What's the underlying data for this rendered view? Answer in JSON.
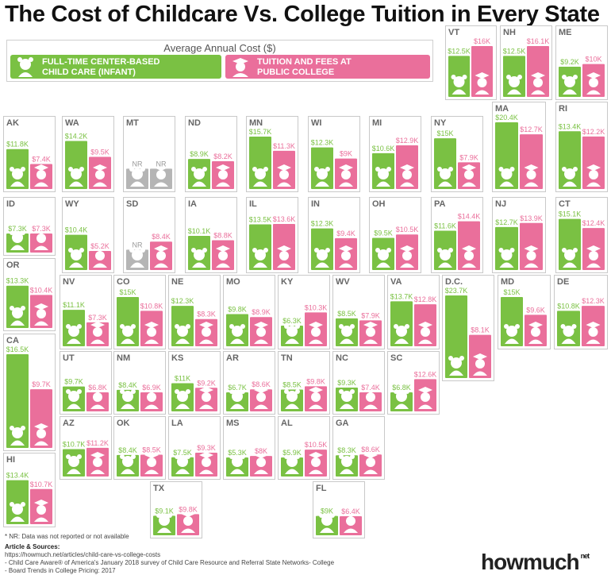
{
  "title": "The Cost of Childcare Vs. College Tuition in Every State",
  "legend": {
    "title": "Average Annual Cost ($)",
    "childcare": "FULL-TIME CENTER-BASED CHILD CARE (INFANT)",
    "childcare_line1": "FULL-TIME CENTER-BASED",
    "childcare_line2": "CHILD CARE (INFANT)",
    "college": "TUITION AND FEES AT PUBLIC COLLEGE",
    "college_line1": "TUITION AND FEES AT",
    "college_line2": "PUBLIC COLLEGE"
  },
  "colors": {
    "childcare": "#7ac143",
    "college": "#ea6f9b",
    "not_reported": "#b5b5b5",
    "border": "#c9c9c9"
  },
  "icons": {
    "childcare": "baby-icon",
    "college": "graduate-icon"
  },
  "chart_data": {
    "type": "bar",
    "title": "The Cost of Childcare Vs. College Tuition in Every State",
    "unit": "$ thousands",
    "series_names": [
      "FULL-TIME CENTER-BASED CHILD CARE (INFANT)",
      "TUITION AND FEES AT PUBLIC COLLEGE"
    ],
    "states": [
      {
        "state": "VT",
        "childcare": 12.5,
        "college": 16,
        "childcare_label": "$12.5K",
        "college_label": "$16K"
      },
      {
        "state": "NH",
        "childcare": 12.5,
        "college": 16.1,
        "childcare_label": "$12.5K",
        "college_label": "$16.1K"
      },
      {
        "state": "ME",
        "childcare": 9.2,
        "college": 10,
        "childcare_label": "$9.2K",
        "college_label": "$10K"
      },
      {
        "state": "AK",
        "childcare": 11.8,
        "college": 7.4,
        "childcare_label": "$11.8K",
        "college_label": "$7.4K"
      },
      {
        "state": "WA",
        "childcare": 14.2,
        "college": 9.5,
        "childcare_label": "$14.2K",
        "college_label": "$9.5K"
      },
      {
        "state": "MT",
        "childcare": null,
        "college": null,
        "childcare_label": "NR",
        "college_label": "NR"
      },
      {
        "state": "ND",
        "childcare": 8.9,
        "college": 8.2,
        "childcare_label": "$8.9K",
        "college_label": "$8.2K"
      },
      {
        "state": "MN",
        "childcare": 15.7,
        "college": 11.3,
        "childcare_label": "$15.7K",
        "college_label": "$11.3K"
      },
      {
        "state": "WI",
        "childcare": 12.3,
        "college": 9,
        "childcare_label": "$12.3K",
        "college_label": "$9K"
      },
      {
        "state": "MI",
        "childcare": 10.6,
        "college": 12.9,
        "childcare_label": "$10.6K",
        "college_label": "$12.9K"
      },
      {
        "state": "NY",
        "childcare": 15,
        "college": 7.9,
        "childcare_label": "$15K",
        "college_label": "$7.9K"
      },
      {
        "state": "MA",
        "childcare": 20.4,
        "college": 12.7,
        "childcare_label": "$20.4K",
        "college_label": "$12.7K"
      },
      {
        "state": "RI",
        "childcare": 13.4,
        "college": 12.2,
        "childcare_label": "$13.4K",
        "college_label": "$12.2K"
      },
      {
        "state": "ID",
        "childcare": 7.3,
        "college": 7.3,
        "childcare_label": "$7.3K",
        "college_label": "$7.3K"
      },
      {
        "state": "WY",
        "childcare": 10.4,
        "college": 5.2,
        "childcare_label": "$10.4K",
        "college_label": "$5.2K"
      },
      {
        "state": "SD",
        "childcare": null,
        "college": 8.4,
        "childcare_label": "NR",
        "college_label": "$8.4K"
      },
      {
        "state": "IA",
        "childcare": 10.1,
        "college": 8.8,
        "childcare_label": "$10.1K",
        "college_label": "$8.8K"
      },
      {
        "state": "IL",
        "childcare": 13.5,
        "college": 13.6,
        "childcare_label": "$13.5K",
        "college_label": "$13.6K"
      },
      {
        "state": "IN",
        "childcare": 12.3,
        "college": 9.4,
        "childcare_label": "$12.3K",
        "college_label": "$9.4K"
      },
      {
        "state": "OH",
        "childcare": 9.5,
        "college": 10.5,
        "childcare_label": "$9.5K",
        "college_label": "$10.5K"
      },
      {
        "state": "PA",
        "childcare": 11.6,
        "college": 14.4,
        "childcare_label": "$11.6K",
        "college_label": "$14.4K"
      },
      {
        "state": "NJ",
        "childcare": 12.7,
        "college": 13.9,
        "childcare_label": "$12.7K",
        "college_label": "$13.9K"
      },
      {
        "state": "CT",
        "childcare": 15.1,
        "college": 12.4,
        "childcare_label": "$15.1K",
        "college_label": "$12.4K"
      },
      {
        "state": "OR",
        "childcare": 13.3,
        "college": 10.4,
        "childcare_label": "$13.3K",
        "college_label": "$10.4K"
      },
      {
        "state": "NV",
        "childcare": 11.1,
        "college": 7.3,
        "childcare_label": "$11.1K",
        "college_label": "$7.3K"
      },
      {
        "state": "CO",
        "childcare": 15,
        "college": 10.8,
        "childcare_label": "$15K",
        "college_label": "$10.8K"
      },
      {
        "state": "NE",
        "childcare": 12.3,
        "college": 8.3,
        "childcare_label": "$12.3K",
        "college_label": "$8.3K"
      },
      {
        "state": "MO",
        "childcare": 9.8,
        "college": 8.9,
        "childcare_label": "$9.8K",
        "college_label": "$8.9K"
      },
      {
        "state": "KY",
        "childcare": 6.3,
        "college": 10.3,
        "childcare_label": "$6.3K",
        "college_label": "$10.3K"
      },
      {
        "state": "WV",
        "childcare": 8.5,
        "college": 7.9,
        "childcare_label": "$8.5K",
        "college_label": "$7.9K"
      },
      {
        "state": "VA",
        "childcare": 13.7,
        "college": 12.8,
        "childcare_label": "$13.7K",
        "college_label": "$12.8K"
      },
      {
        "state": "D.C.",
        "childcare": 23.7,
        "college": 8.1,
        "childcare_label": "$23.7K",
        "college_label": "$8.1K"
      },
      {
        "state": "MD",
        "childcare": 15,
        "college": 9.6,
        "childcare_label": "$15K",
        "college_label": "$9.6K"
      },
      {
        "state": "DE",
        "childcare": 10.8,
        "college": 12.3,
        "childcare_label": "$10.8K",
        "college_label": "$12.3K"
      },
      {
        "state": "CA",
        "childcare": 16.5,
        "college": 9.7,
        "childcare_label": "$16.5K",
        "college_label": "$9.7K"
      },
      {
        "state": "UT",
        "childcare": 9.7,
        "college": 6.8,
        "childcare_label": "$9.7K",
        "college_label": "$6.8K"
      },
      {
        "state": "NM",
        "childcare": 8.4,
        "college": 6.9,
        "childcare_label": "$8.4K",
        "college_label": "$6.9K"
      },
      {
        "state": "KS",
        "childcare": 11,
        "college": 9.2,
        "childcare_label": "$11K",
        "college_label": "$9.2K"
      },
      {
        "state": "AR",
        "childcare": 6.7,
        "college": 8.6,
        "childcare_label": "$6.7K",
        "college_label": "$8.6K"
      },
      {
        "state": "TN",
        "childcare": 8.5,
        "college": 9.8,
        "childcare_label": "$8.5K",
        "college_label": "$9.8K"
      },
      {
        "state": "NC",
        "childcare": 9.3,
        "college": 7.4,
        "childcare_label": "$9.3K",
        "college_label": "$7.4K"
      },
      {
        "state": "SC",
        "childcare": 6.8,
        "college": 12.6,
        "childcare_label": "$6.8K",
        "college_label": "$12.6K"
      },
      {
        "state": "AZ",
        "childcare": 10.7,
        "college": 11.2,
        "childcare_label": "$10.7K",
        "college_label": "$11.2K"
      },
      {
        "state": "OK",
        "childcare": 8.4,
        "college": 8.5,
        "childcare_label": "$8.4K",
        "college_label": "$8.5K"
      },
      {
        "state": "LA",
        "childcare": 7.5,
        "college": 9.3,
        "childcare_label": "$7.5K",
        "college_label": "$9.3K"
      },
      {
        "state": "MS",
        "childcare": 5.3,
        "college": 8,
        "childcare_label": "$5.3K",
        "college_label": "$8K"
      },
      {
        "state": "AL",
        "childcare": 5.9,
        "college": 10.5,
        "childcare_label": "$5.9K",
        "college_label": "$10.5K"
      },
      {
        "state": "GA",
        "childcare": 8.3,
        "college": 8.6,
        "childcare_label": "$8.3K",
        "college_label": "$8.6K"
      },
      {
        "state": "HI",
        "childcare": 13.4,
        "college": 10.7,
        "childcare_label": "$13.4K",
        "college_label": "$10.7K"
      },
      {
        "state": "TX",
        "childcare": 9.1,
        "college": 9.8,
        "childcare_label": "$9.1K",
        "college_label": "$9.8K"
      },
      {
        "state": "FL",
        "childcare": 9,
        "college": 6.4,
        "childcare_label": "$9K",
        "college_label": "$6.4K"
      }
    ]
  },
  "footer": {
    "note": "* NR: Data was not reported or not available",
    "sources_title": "Article & Sources:",
    "source_1": "https://howmuch.net/articles/child-care-vs-college-costs",
    "source_2": "- Child Care Aware® of America's January 2018 survey of Child Care Resource and Referral State Networks- College",
    "source_3": "- Board Trends in College Pricing: 2017"
  },
  "brand": {
    "name": "howmuch",
    "suffix": "net"
  }
}
